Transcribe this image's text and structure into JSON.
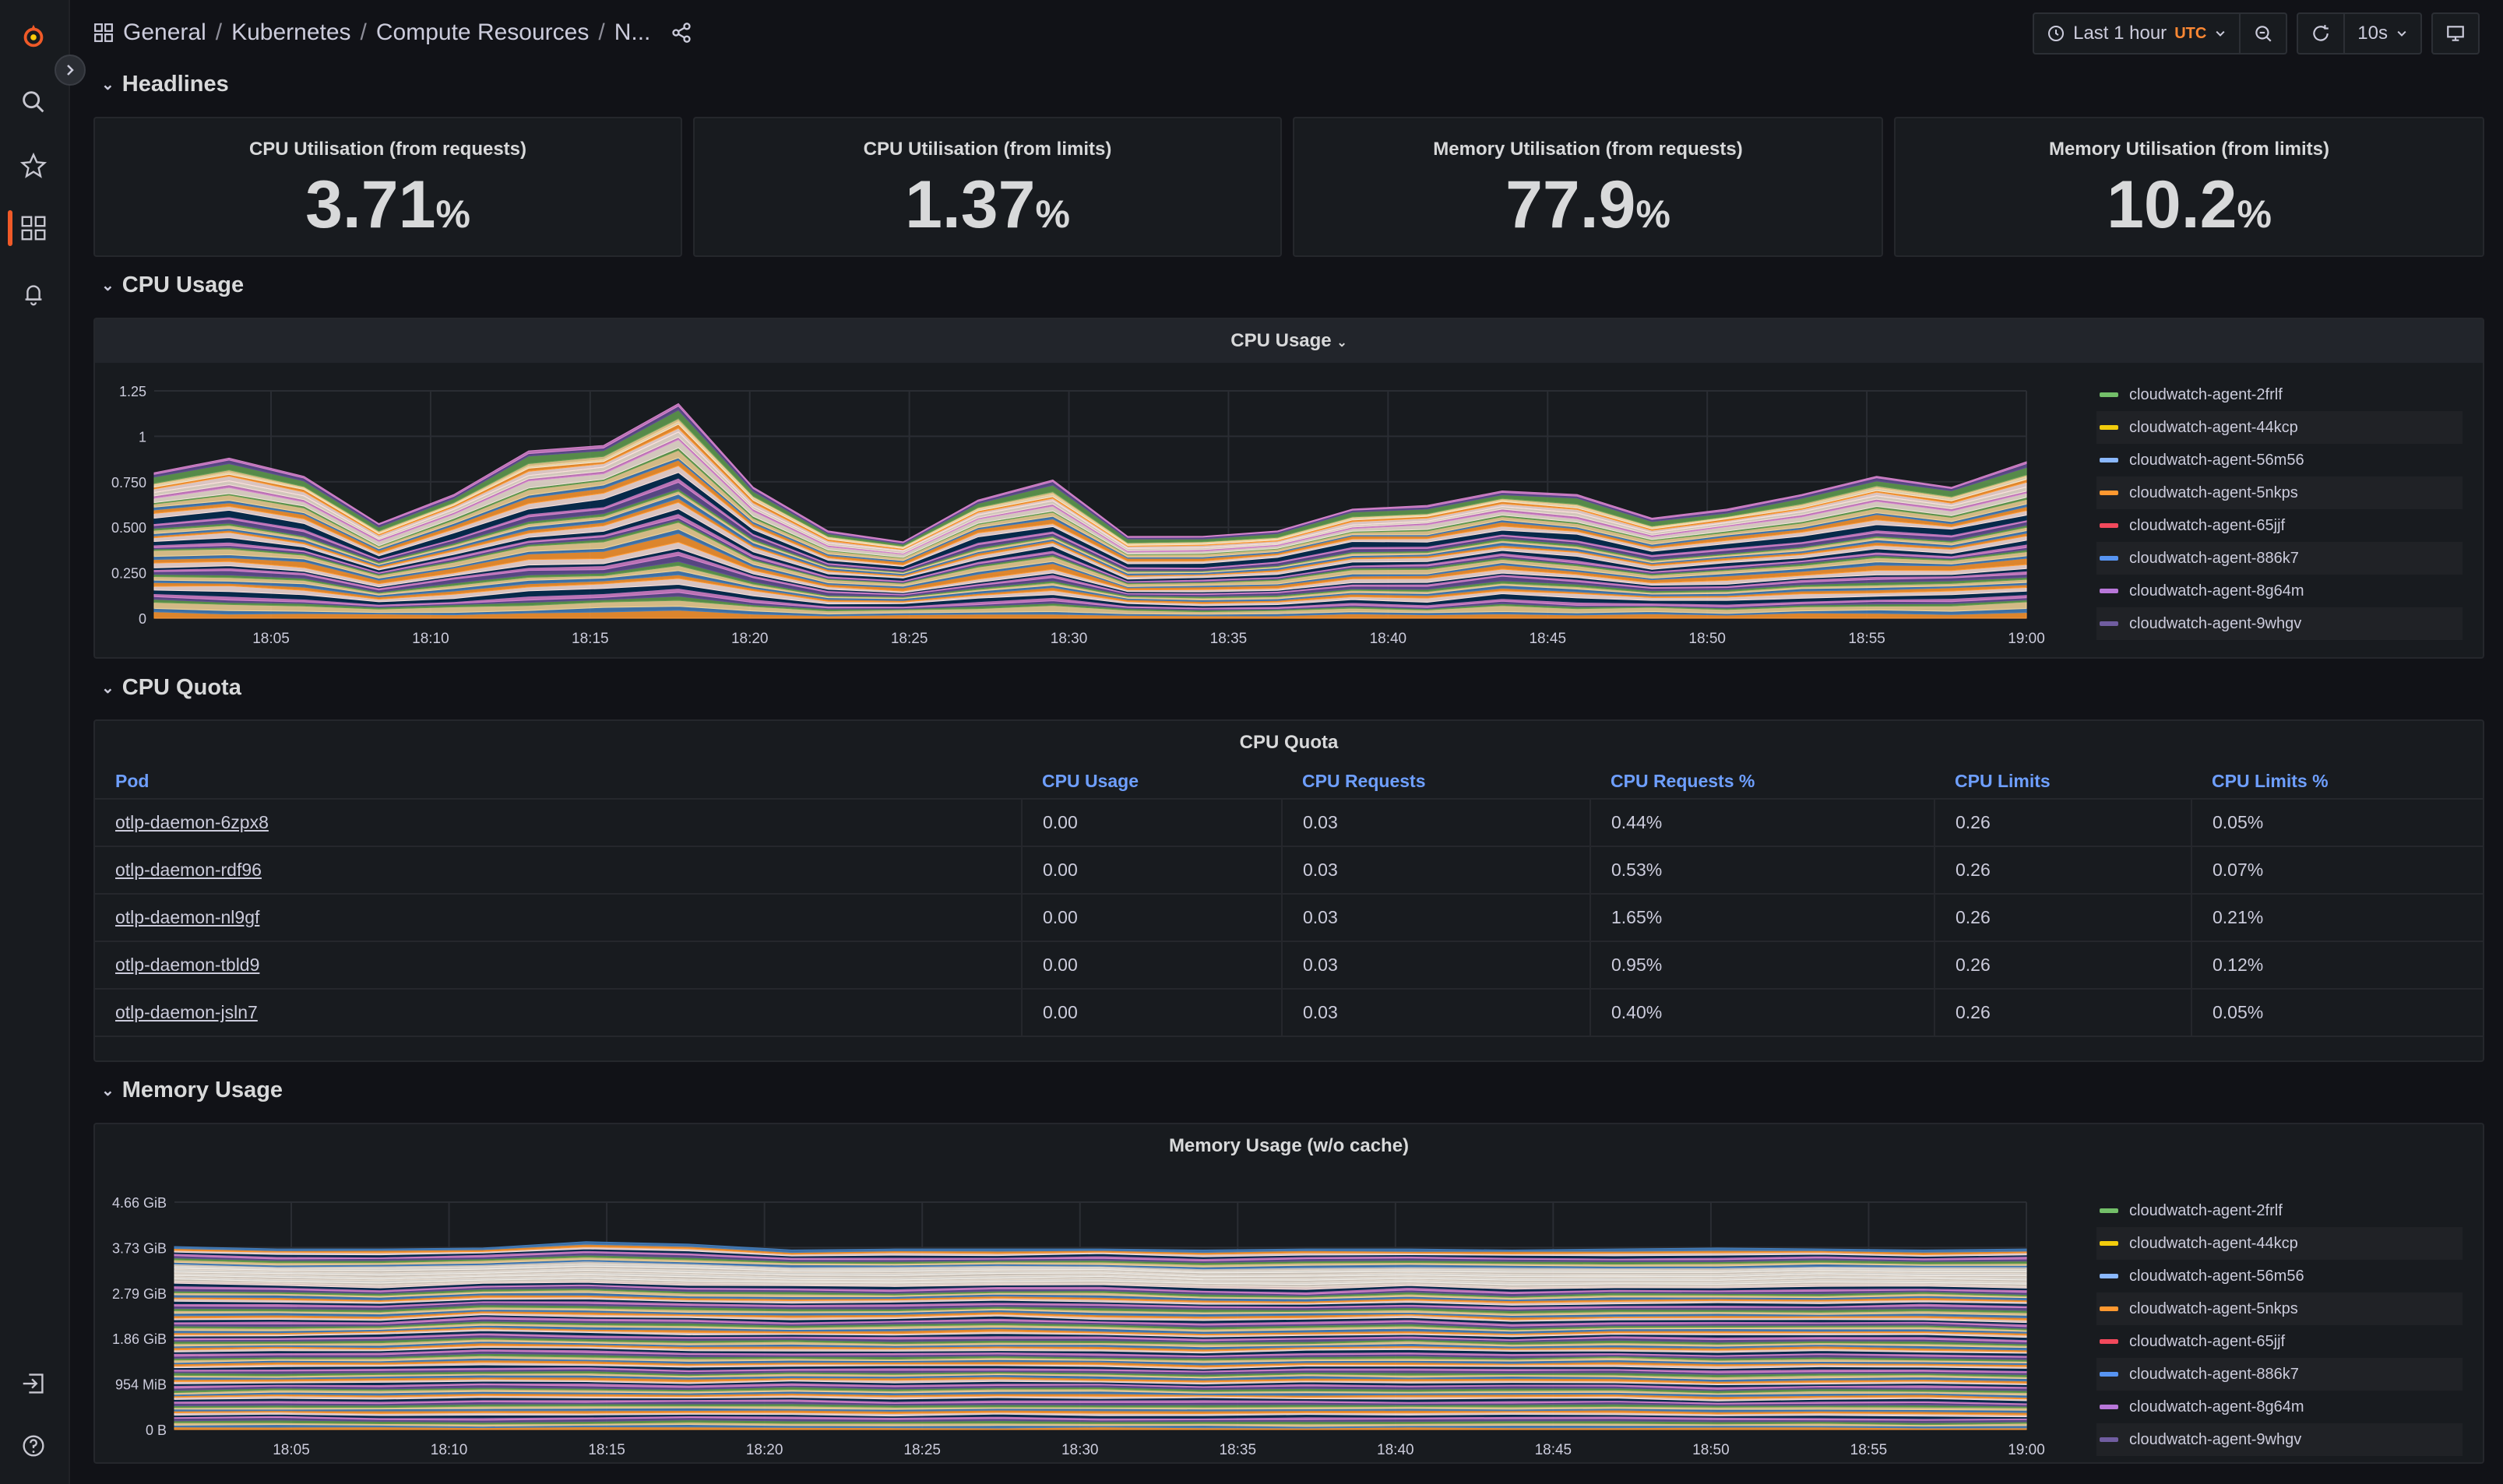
{
  "breadcrumb": {
    "folder": "General",
    "separator": "/",
    "path_1": "Kubernetes",
    "path_2": "Compute Resources",
    "path_3": "N..."
  },
  "time_picker": {
    "label": "Last 1 hour",
    "timezone": "UTC"
  },
  "refresh": {
    "interval": "10s"
  },
  "rows": {
    "headlines": "Headlines",
    "cpu_usage": "CPU Usage",
    "cpu_quota": "CPU Quota",
    "memory_usage": "Memory Usage"
  },
  "stats": [
    {
      "title": "CPU Utilisation (from requests)",
      "value": "3.71",
      "unit": "%"
    },
    {
      "title": "CPU Utilisation (from limits)",
      "value": "1.37",
      "unit": "%"
    },
    {
      "title": "Memory Utilisation (from requests)",
      "value": "77.9",
      "unit": "%"
    },
    {
      "title": "Memory Utilisation (from limits)",
      "value": "10.2",
      "unit": "%"
    }
  ],
  "legend": [
    {
      "name": "cloudwatch-agent-2frlf",
      "color": "#73bf69"
    },
    {
      "name": "cloudwatch-agent-44kcp",
      "color": "#f2cc0c"
    },
    {
      "name": "cloudwatch-agent-56m56",
      "color": "#8ab8ff"
    },
    {
      "name": "cloudwatch-agent-5nkps",
      "color": "#ff9830"
    },
    {
      "name": "cloudwatch-agent-65jjf",
      "color": "#f2495c"
    },
    {
      "name": "cloudwatch-agent-886k7",
      "color": "#5794f2"
    },
    {
      "name": "cloudwatch-agent-8g64m",
      "color": "#b877d9"
    },
    {
      "name": "cloudwatch-agent-9whgv",
      "color": "#705da0"
    }
  ],
  "cpu_panel": {
    "title": "CPU Usage"
  },
  "memory_panel": {
    "title": "Memory Usage (w/o cache)"
  },
  "quota_panel": {
    "title": "CPU Quota",
    "columns": [
      "Pod",
      "CPU Usage",
      "CPU Requests",
      "CPU Requests %",
      "CPU Limits",
      "CPU Limits %"
    ],
    "rows": [
      [
        "otlp-daemon-6zpx8",
        "0.00",
        "0.03",
        "0.44%",
        "0.26",
        "0.05%"
      ],
      [
        "otlp-daemon-rdf96",
        "0.00",
        "0.03",
        "0.53%",
        "0.26",
        "0.07%"
      ],
      [
        "otlp-daemon-nl9gf",
        "0.00",
        "0.03",
        "1.65%",
        "0.26",
        "0.21%"
      ],
      [
        "otlp-daemon-tbld9",
        "0.00",
        "0.03",
        "0.95%",
        "0.26",
        "0.12%"
      ],
      [
        "otlp-daemon-jsln7",
        "0.00",
        "0.03",
        "0.40%",
        "0.26",
        "0.05%"
      ]
    ]
  },
  "chart_data": [
    {
      "type": "area",
      "title": "CPU Usage",
      "x": [
        "18:02",
        "18:04",
        "18:05",
        "18:07",
        "18:10",
        "18:12",
        "18:14",
        "18:15",
        "18:17",
        "18:19",
        "18:22",
        "18:25",
        "18:29",
        "18:30",
        "18:32",
        "18:35",
        "18:37",
        "18:39",
        "18:41",
        "18:44",
        "18:47",
        "18:50",
        "18:52",
        "18:55",
        "18:58",
        "19:00"
      ],
      "x_ticks": [
        "18:05",
        "18:10",
        "18:15",
        "18:20",
        "18:25",
        "18:30",
        "18:35",
        "18:40",
        "18:45",
        "18:50",
        "18:55",
        "19:00"
      ],
      "y_ticks": [
        "0",
        "0.250",
        "0.500",
        "0.750",
        "1",
        "1.25"
      ],
      "ylim": [
        0,
        1.25
      ],
      "total": [
        0.8,
        0.88,
        0.78,
        0.52,
        0.68,
        0.92,
        0.95,
        1.18,
        0.72,
        0.48,
        0.42,
        0.65,
        0.76,
        0.45,
        0.45,
        0.48,
        0.6,
        0.62,
        0.7,
        0.68,
        0.55,
        0.6,
        0.68,
        0.78,
        0.72,
        0.86
      ]
    },
    {
      "type": "area",
      "title": "Memory Usage (w/o cache)",
      "x_ticks": [
        "18:05",
        "18:10",
        "18:15",
        "18:20",
        "18:25",
        "18:30",
        "18:35",
        "18:40",
        "18:45",
        "18:50",
        "18:55",
        "19:00"
      ],
      "y_ticks": [
        "0 B",
        "954 MiB",
        "1.86 GiB",
        "2.79 GiB",
        "3.73 GiB",
        "4.66 GiB"
      ],
      "ylim_gib": [
        0,
        4.66
      ],
      "total_gib": [
        3.75,
        3.7,
        3.7,
        3.72,
        3.85,
        3.8,
        3.68,
        3.7,
        3.7,
        3.7,
        3.68,
        3.7,
        3.7,
        3.68,
        3.7,
        3.72,
        3.7,
        3.68,
        3.7
      ]
    }
  ]
}
